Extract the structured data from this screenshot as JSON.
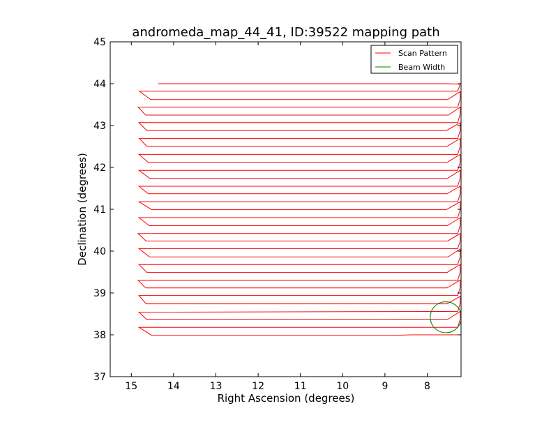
{
  "chart_data": {
    "type": "line",
    "title": "andromeda_map_44_41, ID:39522 mapping path",
    "xlabel": "Right Ascension (degrees)",
    "ylabel": "Declination (degrees)",
    "xlim": [
      15.5,
      7.2
    ],
    "ylim": [
      37,
      45
    ],
    "x_inverted": true,
    "xticks": [
      15,
      14,
      13,
      12,
      11,
      10,
      9,
      8
    ],
    "yticks": [
      37,
      38,
      39,
      40,
      41,
      42,
      43,
      44,
      45
    ],
    "grid": false,
    "legend_position": "top-right",
    "series": [
      {
        "name": "Scan Pattern",
        "color": "#ff0000",
        "points": [
          [
            14.37,
            44.0
          ],
          [
            7.53,
            44.0
          ],
          [
            7.22,
            43.99
          ],
          [
            7.28,
            43.82
          ],
          [
            14.81,
            43.82
          ],
          [
            14.54,
            43.62
          ],
          [
            7.52,
            43.62
          ],
          [
            7.22,
            43.81
          ],
          [
            7.22,
            43.63
          ],
          [
            7.28,
            43.44
          ],
          [
            14.84,
            43.44
          ],
          [
            14.66,
            43.25
          ],
          [
            7.5,
            43.25
          ],
          [
            7.22,
            43.44
          ],
          [
            7.22,
            43.27
          ],
          [
            7.28,
            43.07
          ],
          [
            14.82,
            43.07
          ],
          [
            14.63,
            42.88
          ],
          [
            7.55,
            42.88
          ],
          [
            7.22,
            43.07
          ],
          [
            7.22,
            42.88
          ],
          [
            7.28,
            42.69
          ],
          [
            14.81,
            42.69
          ],
          [
            14.63,
            42.5
          ],
          [
            7.54,
            42.5
          ],
          [
            7.22,
            42.69
          ],
          [
            7.22,
            42.5
          ],
          [
            7.28,
            42.31
          ],
          [
            14.82,
            42.31
          ],
          [
            14.6,
            42.12
          ],
          [
            7.53,
            42.12
          ],
          [
            7.22,
            42.31
          ],
          [
            7.22,
            42.12
          ],
          [
            7.28,
            41.93
          ],
          [
            14.82,
            41.93
          ],
          [
            14.57,
            41.74
          ],
          [
            7.52,
            41.74
          ],
          [
            7.22,
            41.93
          ],
          [
            7.22,
            41.74
          ],
          [
            7.28,
            41.55
          ],
          [
            14.82,
            41.55
          ],
          [
            14.6,
            41.37
          ],
          [
            7.53,
            41.37
          ],
          [
            7.22,
            41.55
          ],
          [
            7.22,
            41.37
          ],
          [
            7.28,
            41.18
          ],
          [
            14.82,
            41.18
          ],
          [
            14.52,
            40.99
          ],
          [
            7.55,
            40.99
          ],
          [
            7.22,
            41.18
          ],
          [
            7.22,
            40.99
          ],
          [
            7.28,
            40.8
          ],
          [
            14.82,
            40.8
          ],
          [
            14.58,
            40.61
          ],
          [
            7.52,
            40.61
          ],
          [
            7.22,
            40.8
          ],
          [
            7.22,
            40.62
          ],
          [
            7.28,
            40.42
          ],
          [
            14.84,
            40.42
          ],
          [
            14.65,
            40.24
          ],
          [
            7.52,
            40.24
          ],
          [
            7.22,
            40.42
          ],
          [
            7.22,
            40.24
          ],
          [
            7.28,
            40.06
          ],
          [
            14.82,
            40.06
          ],
          [
            14.57,
            39.86
          ],
          [
            7.51,
            39.86
          ],
          [
            7.22,
            40.05
          ],
          [
            7.22,
            39.87
          ],
          [
            7.28,
            39.68
          ],
          [
            14.82,
            39.68
          ],
          [
            14.63,
            39.49
          ],
          [
            7.53,
            39.49
          ],
          [
            7.22,
            39.68
          ],
          [
            7.22,
            39.5
          ],
          [
            7.28,
            39.3
          ],
          [
            14.84,
            39.3
          ],
          [
            14.66,
            39.12
          ],
          [
            7.53,
            39.12
          ],
          [
            7.22,
            39.31
          ],
          [
            7.22,
            39.13
          ],
          [
            7.28,
            38.94
          ],
          [
            14.82,
            38.94
          ],
          [
            14.65,
            38.74
          ],
          [
            7.53,
            38.74
          ],
          [
            7.22,
            38.92
          ],
          [
            7.22,
            38.75
          ],
          [
            7.28,
            38.56
          ],
          [
            14.82,
            38.54
          ],
          [
            14.63,
            38.36
          ],
          [
            7.53,
            38.36
          ],
          [
            7.22,
            38.56
          ],
          [
            7.22,
            38.37
          ],
          [
            7.28,
            38.18
          ],
          [
            14.82,
            38.18
          ],
          [
            14.52,
            37.99
          ],
          [
            8.73,
            37.99
          ],
          [
            8.37,
            38.0
          ],
          [
            7.22,
            38.0
          ]
        ]
      },
      {
        "name": "Beam Width",
        "color": "#008000",
        "shape": "circle",
        "center": [
          7.56,
          38.42
        ],
        "radius": 0.37
      }
    ]
  }
}
